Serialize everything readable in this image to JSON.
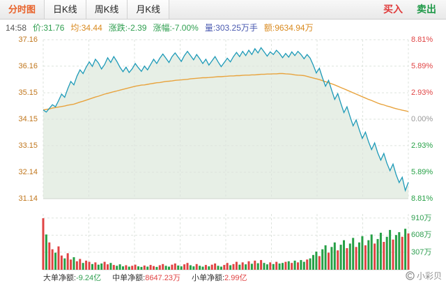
{
  "tabs": {
    "items": [
      "分时图",
      "日K线",
      "周K线",
      "月K线"
    ],
    "active": "分时图"
  },
  "actions": {
    "buy": "买入",
    "sell": "卖出"
  },
  "quote_bar": {
    "time": "14:58",
    "items": [
      {
        "text": "价:31.76",
        "color": "#2e9e4f"
      },
      {
        "text": "均:34.44",
        "color": "#d98a1f"
      },
      {
        "text": "涨跌:-2.39",
        "color": "#2e9e4f"
      },
      {
        "text": "涨幅:-7.00%",
        "color": "#2e9e4f"
      },
      {
        "text": "量:303.25万手",
        "color": "#4a5ab0"
      },
      {
        "text": "额:9634.94万",
        "color": "#d98a1f"
      }
    ]
  },
  "fund_flow": {
    "items": [
      {
        "label": "大单净额:",
        "value": "-9.24亿",
        "color": "#2e9e4f"
      },
      {
        "label": "中单净额:",
        "value": "8647.23万",
        "color": "#e04343"
      },
      {
        "label": "小单净额:",
        "value": "2.99亿",
        "color": "#e04343"
      }
    ]
  },
  "watermark": {
    "brand": "小彩贝"
  },
  "chart_data": {
    "type": "line",
    "title": "分时图",
    "prev_close": 34.15,
    "ylim": [
      31.14,
      37.16
    ],
    "pct_range": [
      -8.81,
      8.81
    ],
    "volume_ylim": [
      0,
      980
    ],
    "left_axis_labels": [
      "37.16",
      "36.16",
      "35.15",
      "34.15",
      "33.15",
      "32.14",
      "31.14"
    ],
    "left_axis_values": [
      37.16,
      36.16,
      35.15,
      34.15,
      33.15,
      32.14,
      31.14
    ],
    "right_axis_labels": [
      {
        "text": "8.81%",
        "color": "#e04343"
      },
      {
        "text": "5.89%",
        "color": "#e04343"
      },
      {
        "text": "2.93%",
        "color": "#e04343"
      },
      {
        "text": "0.00%",
        "color": "#999999"
      },
      {
        "text": "2.93%",
        "color": "#26a046"
      },
      {
        "text": "5.89%",
        "color": "#26a046"
      },
      {
        "text": "8.81%",
        "color": "#26a046"
      }
    ],
    "volume_axis_labels": [
      "910万",
      "608万",
      "307万"
    ],
    "volume_axis_values": [
      910,
      608,
      307
    ],
    "colors": {
      "price_line": "#1d9ab8",
      "avg_line": "#e8a33d",
      "area_fill": "#e7efe6",
      "up": "#e04343",
      "down": "#26a046",
      "grid": "#dde3dd",
      "separator": "#cfd6cf",
      "left_axis": "#c0761c",
      "volume_axis": "#2e9e4f"
    },
    "series": [
      {
        "name": "price",
        "values": [
          34.5,
          34.42,
          34.56,
          34.7,
          34.62,
          34.85,
          35.1,
          34.98,
          35.3,
          35.58,
          35.45,
          35.78,
          36.02,
          35.88,
          36.12,
          36.32,
          36.15,
          36.42,
          36.28,
          36.05,
          36.22,
          36.48,
          36.3,
          36.52,
          36.34,
          36.12,
          35.95,
          36.12,
          35.92,
          36.06,
          36.26,
          36.1,
          35.96,
          36.16,
          36.02,
          36.22,
          36.42,
          36.26,
          36.46,
          36.62,
          36.46,
          36.3,
          36.52,
          36.66,
          36.5,
          36.34,
          36.56,
          36.72,
          36.56,
          36.4,
          36.6,
          36.44,
          36.26,
          36.42,
          36.2,
          36.36,
          36.52,
          36.32,
          36.14,
          36.3,
          36.46,
          36.32,
          36.52,
          36.68,
          36.52,
          36.72,
          36.56,
          36.76,
          36.6,
          36.82,
          36.66,
          36.86,
          36.7,
          36.54,
          36.7,
          36.6,
          36.76,
          36.64,
          36.48,
          36.64,
          36.5,
          36.7,
          36.56,
          36.72,
          36.6,
          36.44,
          36.6,
          36.46,
          36.2,
          35.9,
          36.08,
          35.72,
          35.4,
          35.62,
          35.25,
          34.9,
          35.12,
          34.75,
          34.4,
          34.62,
          34.25,
          33.9,
          34.12,
          33.75,
          33.42,
          33.66,
          33.3,
          33.0,
          33.25,
          32.88,
          32.6,
          32.85,
          32.48,
          32.2,
          32.45,
          32.05,
          31.75,
          31.95,
          31.45,
          31.76
        ]
      },
      {
        "name": "avg",
        "values": [
          34.5,
          34.52,
          34.54,
          34.57,
          34.59,
          34.61,
          34.63,
          34.65,
          34.68,
          34.7,
          34.72,
          34.76,
          34.8,
          34.83,
          34.87,
          34.91,
          34.95,
          34.99,
          35.02,
          35.06,
          35.1,
          35.13,
          35.16,
          35.19,
          35.22,
          35.25,
          35.28,
          35.31,
          35.34,
          35.37,
          35.4,
          35.42,
          35.44,
          35.45,
          35.47,
          35.49,
          35.51,
          35.53,
          35.54,
          35.56,
          35.58,
          35.59,
          35.6,
          35.62,
          35.63,
          35.64,
          35.65,
          35.66,
          35.68,
          35.69,
          35.7,
          35.71,
          35.72,
          35.72,
          35.73,
          35.74,
          35.75,
          35.76,
          35.76,
          35.77,
          35.78,
          35.79,
          35.79,
          35.8,
          35.8,
          35.81,
          35.82,
          35.82,
          35.83,
          35.83,
          35.84,
          35.85,
          35.85,
          35.86,
          35.86,
          35.87,
          35.87,
          35.88,
          35.88,
          35.87,
          35.86,
          35.85,
          35.83,
          35.82,
          35.81,
          35.8,
          35.77,
          35.74,
          35.71,
          35.68,
          35.65,
          35.61,
          35.57,
          35.53,
          35.49,
          35.45,
          35.4,
          35.35,
          35.3,
          35.25,
          35.2,
          35.15,
          35.1,
          35.05,
          35.0,
          34.95,
          34.9,
          34.86,
          34.81,
          34.76,
          34.72,
          34.69,
          34.65,
          34.62,
          34.58,
          34.55,
          34.52,
          34.49,
          34.47,
          34.44
        ]
      }
    ],
    "volume": {
      "unit": "万",
      "values": [
        905,
        620,
        480,
        360,
        300,
        410,
        250,
        200,
        290,
        180,
        220,
        150,
        190,
        120,
        160,
        140,
        100,
        130,
        90,
        110,
        140,
        95,
        120,
        85,
        70,
        95,
        60,
        80,
        55,
        70,
        90,
        60,
        50,
        75,
        55,
        85,
        65,
        50,
        80,
        100,
        70,
        55,
        90,
        110,
        75,
        60,
        95,
        120,
        80,
        60,
        100,
        70,
        55,
        85,
        60,
        90,
        110,
        70,
        55,
        85,
        120,
        80,
        100,
        140,
        90,
        130,
        95,
        150,
        105,
        160,
        115,
        170,
        120,
        95,
        130,
        100,
        140,
        110,
        120,
        140,
        150,
        120,
        160,
        130,
        170,
        140,
        180,
        200,
        260,
        320,
        240,
        360,
        430,
        300,
        400,
        480,
        340,
        440,
        520,
        380,
        460,
        560,
        400,
        480,
        590,
        430,
        520,
        620,
        460,
        540,
        650,
        490,
        580,
        700,
        530,
        610,
        660,
        580,
        720,
        640
      ]
    }
  }
}
